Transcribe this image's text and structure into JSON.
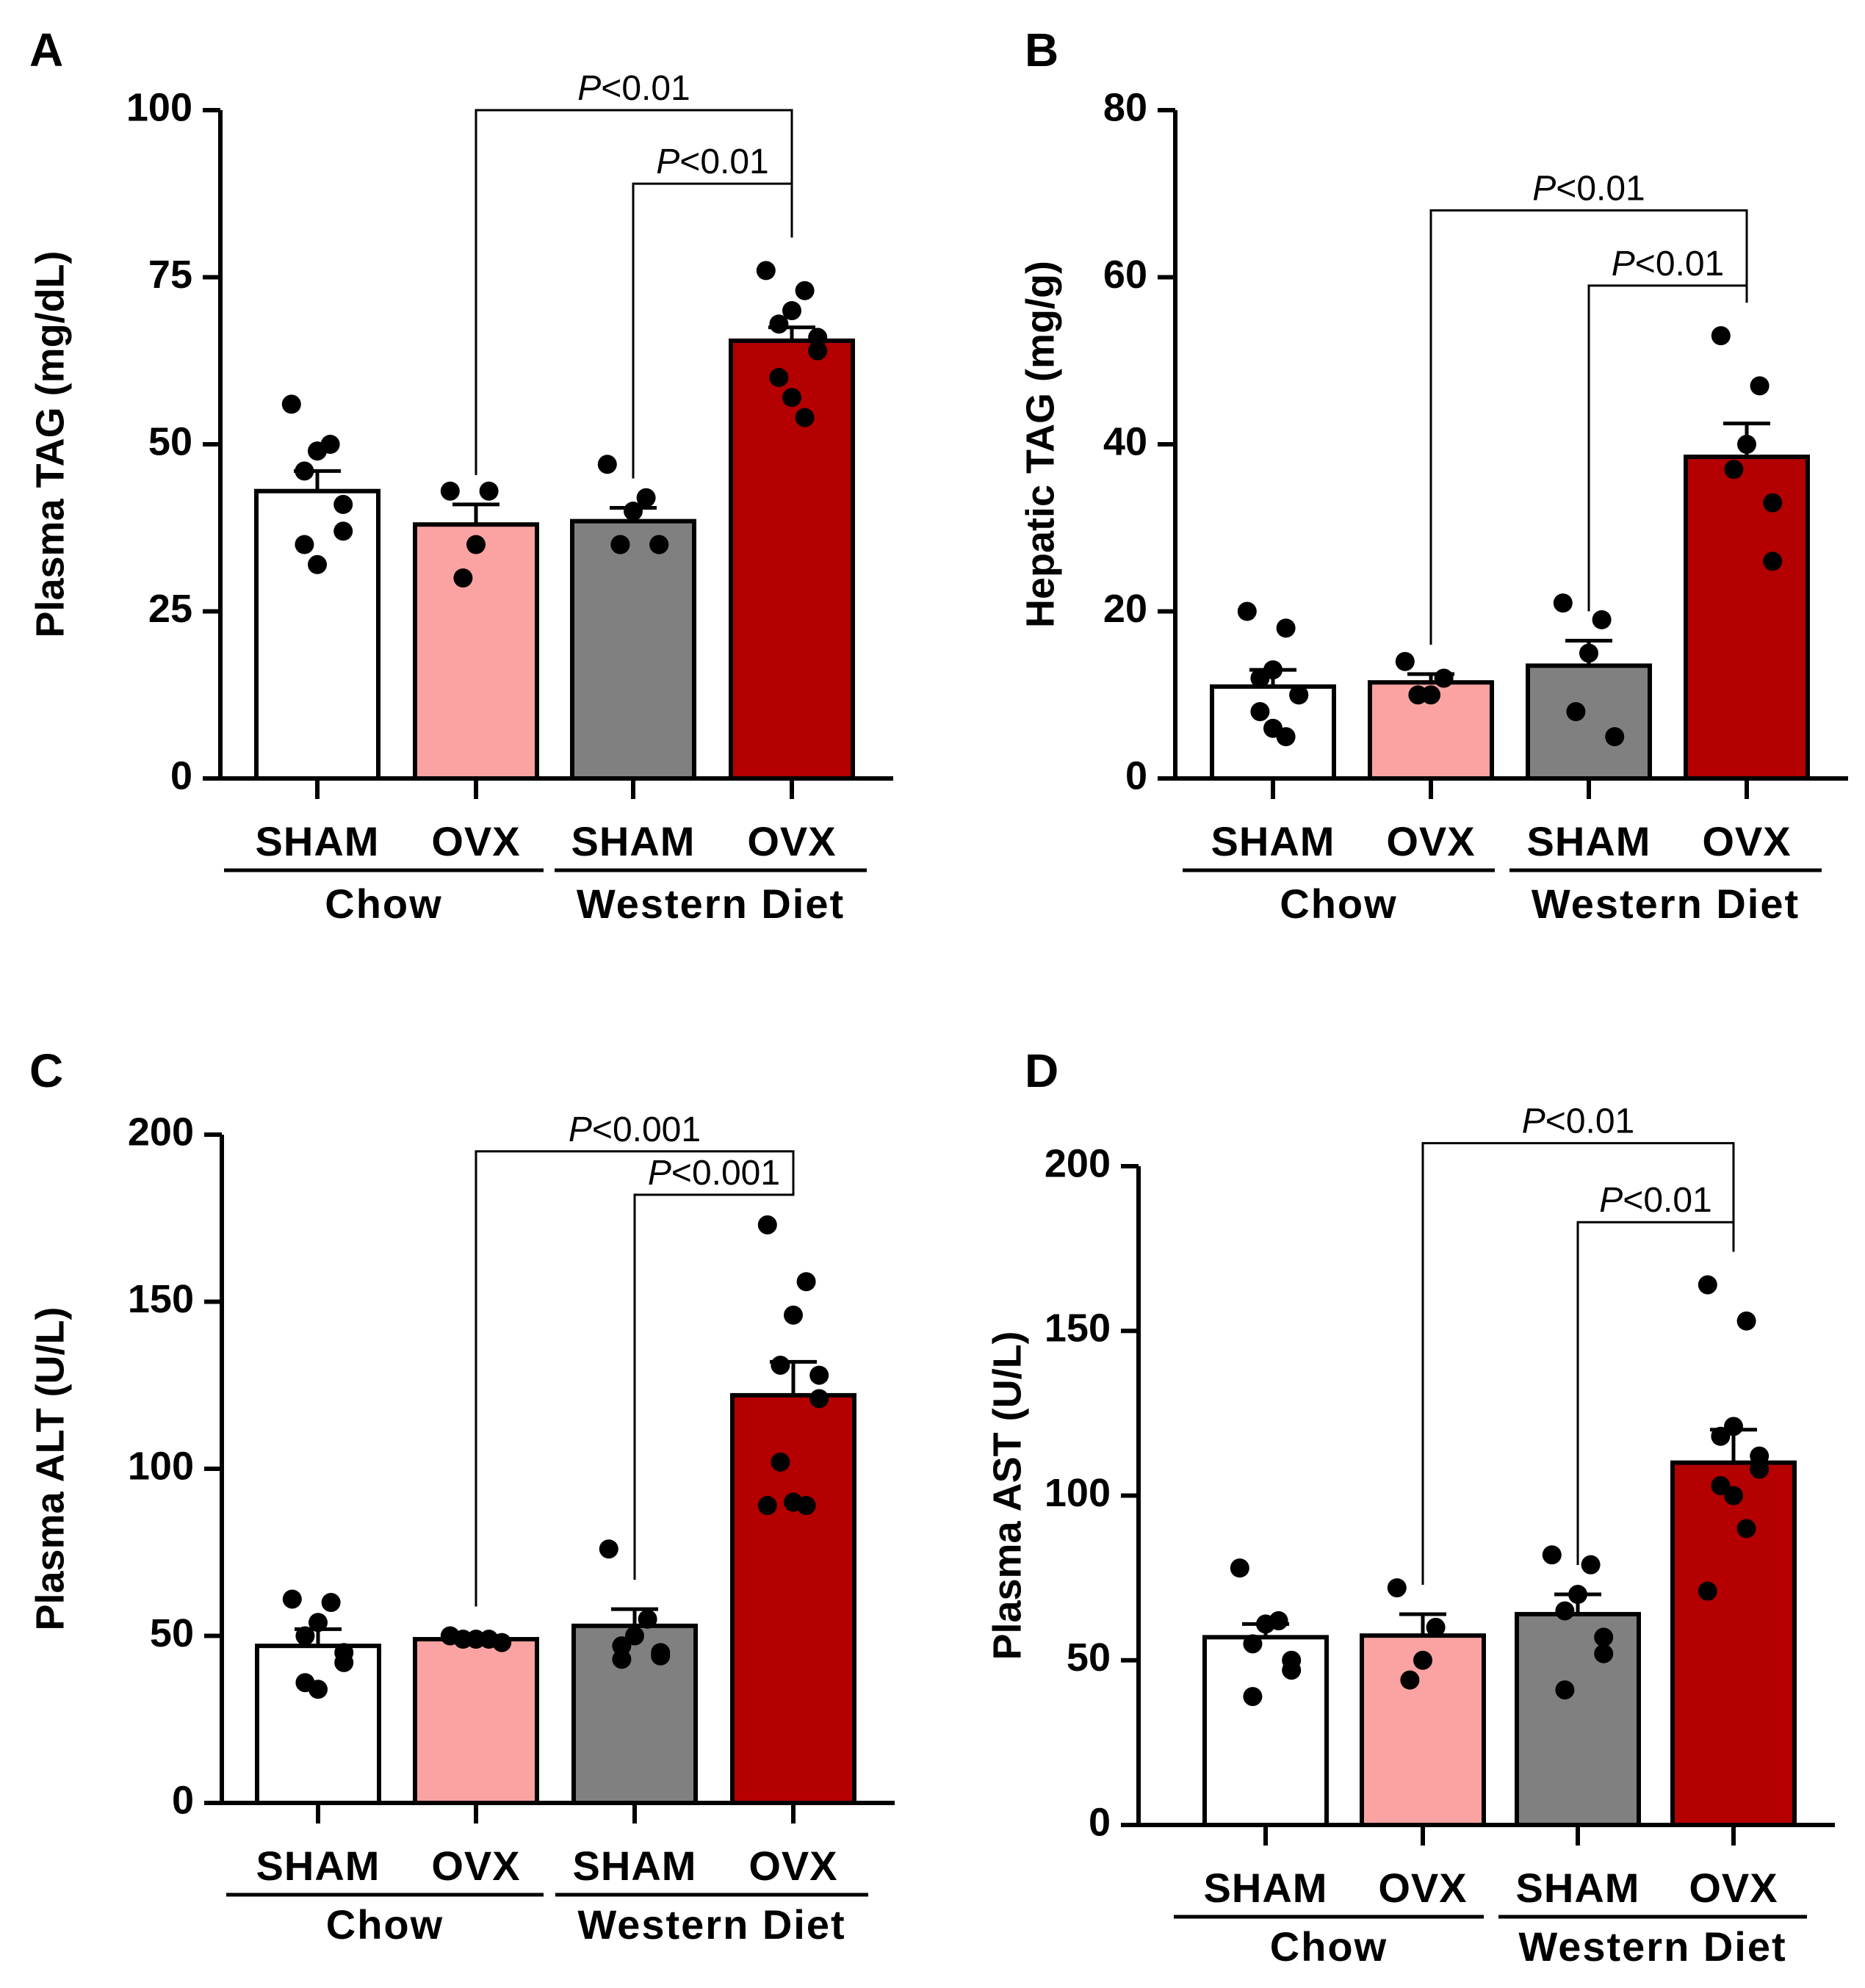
{
  "colors": {
    "chow_sham": "#ffffff",
    "chow_ovx": "#fba3a3",
    "wd_sham": "#808080",
    "wd_ovx": "#b40000",
    "axis": "#000000"
  },
  "chart_data": [
    {
      "panel": "A",
      "type": "bar",
      "ylabel": "Plasma TAG (mg/dL)",
      "ylim": [
        0,
        100
      ],
      "yticks": [
        0,
        25,
        50,
        75,
        100
      ],
      "categories": [
        "SHAM",
        "OVX",
        "SHAM",
        "OVX"
      ],
      "groups": [
        {
          "label": "Chow",
          "span": [
            0,
            1
          ]
        },
        {
          "label": "Western Diet",
          "span": [
            2,
            3
          ]
        }
      ],
      "values": [
        43,
        38,
        38.5,
        65.5
      ],
      "sem": [
        3,
        3,
        2,
        2
      ],
      "points": [
        [
          56,
          50,
          49,
          46,
          41,
          37,
          35,
          32
        ],
        [
          43,
          43,
          35,
          30
        ],
        [
          47,
          42,
          40,
          35,
          35,
          35,
          35
        ],
        [
          76,
          73,
          70,
          68,
          66,
          64,
          60,
          57,
          54
        ]
      ],
      "comparisons": [
        {
          "from": 1,
          "to": 3,
          "label_italic": "P",
          "label_rest": "<0.01",
          "level": 100
        },
        {
          "from": 2,
          "to": 3,
          "label_italic": "P",
          "label_rest": "<0.01",
          "level": 89
        }
      ]
    },
    {
      "panel": "B",
      "type": "bar",
      "ylabel": "Hepatic TAG (mg/g)",
      "ylim": [
        0,
        80
      ],
      "yticks": [
        0,
        20,
        40,
        60,
        80
      ],
      "categories": [
        "SHAM",
        "OVX",
        "SHAM",
        "OVX"
      ],
      "groups": [
        {
          "label": "Chow",
          "span": [
            0,
            1
          ]
        },
        {
          "label": "Western Diet",
          "span": [
            2,
            3
          ]
        }
      ],
      "values": [
        11,
        11.5,
        13.5,
        38.5
      ],
      "sem": [
        2,
        1,
        3,
        4
      ],
      "points": [
        [
          20,
          18,
          13,
          12,
          10,
          10,
          8,
          6,
          5
        ],
        [
          14,
          12,
          10,
          10
        ],
        [
          21,
          19,
          15,
          8,
          5
        ],
        [
          53,
          47,
          40,
          37,
          33,
          26
        ]
      ],
      "comparisons": [
        {
          "from": 1,
          "to": 3,
          "label_italic": "P",
          "label_rest": "<0.01",
          "level": 68
        },
        {
          "from": 2,
          "to": 3,
          "label_italic": "P",
          "label_rest": "<0.01",
          "level": 59
        }
      ]
    },
    {
      "panel": "C",
      "type": "bar",
      "ylabel": "Plasma ALT (U/L)",
      "ylim": [
        0,
        200
      ],
      "yticks": [
        0,
        50,
        100,
        150,
        200
      ],
      "categories": [
        "SHAM",
        "OVX",
        "SHAM",
        "OVX"
      ],
      "groups": [
        {
          "label": "Chow",
          "span": [
            0,
            1
          ]
        },
        {
          "label": "Western Diet",
          "span": [
            2,
            3
          ]
        }
      ],
      "values": [
        47,
        49,
        53,
        122
      ],
      "sem": [
        5,
        1,
        5,
        10
      ],
      "points": [
        [
          61,
          60,
          54,
          50,
          45,
          42,
          36,
          34
        ],
        [
          50,
          49,
          49,
          49,
          48
        ],
        [
          76,
          55,
          50,
          47,
          45,
          44,
          43
        ],
        [
          173,
          156,
          146,
          131,
          128,
          121,
          102,
          90,
          89,
          89
        ]
      ],
      "comparisons": [
        {
          "from": 1,
          "to": 3,
          "label_italic": "P",
          "label_rest": "<0.001",
          "level": 195
        },
        {
          "from": 2,
          "to": 3,
          "label_italic": "P",
          "label_rest": "<0.001",
          "level": 182
        }
      ]
    },
    {
      "panel": "D",
      "type": "bar",
      "ylabel": "Plasma AST (U/L)",
      "ylim": [
        0,
        200
      ],
      "yticks": [
        0,
        50,
        100,
        150,
        200
      ],
      "categories": [
        "SHAM",
        "OVX",
        "SHAM",
        "OVX"
      ],
      "groups": [
        {
          "label": "Chow",
          "span": [
            0,
            1
          ]
        },
        {
          "label": "Western Diet",
          "span": [
            2,
            3
          ]
        }
      ],
      "values": [
        57,
        57.5,
        64,
        110
      ],
      "sem": [
        4,
        6.5,
        6,
        10
      ],
      "points": [
        [
          78,
          62,
          61,
          55,
          50,
          47,
          39
        ],
        [
          72,
          60,
          50,
          44
        ],
        [
          82,
          79,
          70,
          65,
          57,
          52,
          41
        ],
        [
          164,
          153,
          121,
          118,
          112,
          108,
          103,
          100,
          90,
          71
        ]
      ],
      "comparisons": [
        {
          "from": 1,
          "to": 3,
          "label_italic": "P",
          "label_rest": "<0.01",
          "level": 207
        },
        {
          "from": 2,
          "to": 3,
          "label_italic": "P",
          "label_rest": "<0.01",
          "level": 183
        }
      ]
    }
  ]
}
